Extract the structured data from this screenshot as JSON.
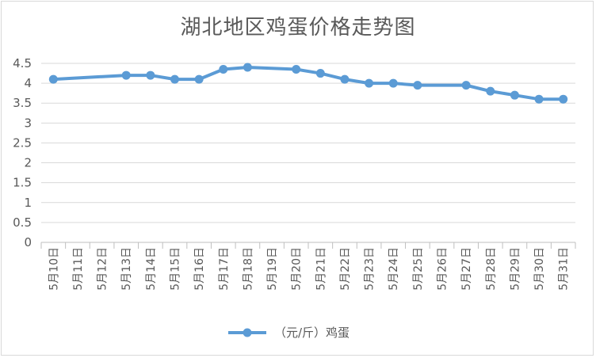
{
  "chart_data": {
    "type": "line",
    "title": "湖北地区鸡蛋价格走势图",
    "categories": [
      "5月10日",
      "5月11日",
      "5月12日",
      "5月13日",
      "5月14日",
      "5月15日",
      "5月16日",
      "5月17日",
      "5月18日",
      "5月19日",
      "5月20日",
      "5月21日",
      "5月22日",
      "5月23日",
      "5月24日",
      "5月25日",
      "5月26日",
      "5月27日",
      "5月28日",
      "5月29日",
      "5月30日",
      "5月31日"
    ],
    "series": [
      {
        "name": "（元/斤）鸡蛋",
        "color": "#5b9bd5",
        "values": [
          4.1,
          null,
          null,
          4.2,
          4.2,
          4.1,
          4.1,
          4.35,
          4.4,
          null,
          4.35,
          4.25,
          4.1,
          4.0,
          4.0,
          3.95,
          null,
          3.95,
          3.8,
          3.7,
          3.6,
          3.6
        ]
      }
    ],
    "yticks": [
      "0",
      "0.5",
      "1",
      "1.5",
      "2",
      "2.5",
      "3",
      "3.5",
      "4",
      "4.5"
    ],
    "ylim": [
      0,
      4.5
    ],
    "grid": true,
    "legend_position": "bottom"
  }
}
